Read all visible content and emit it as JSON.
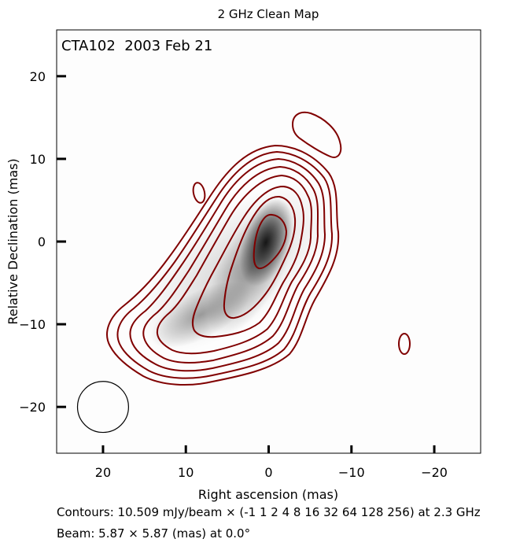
{
  "chart_data": {
    "type": "contour",
    "title": "2 GHz Clean Map",
    "annotation": "CTA102  2003 Feb 21",
    "xlabel": "Right ascension (mas)",
    "ylabel": "Relative Declination (mas)",
    "xlim": [
      25.6,
      -25.6
    ],
    "ylim": [
      -25.6,
      25.6
    ],
    "xticks": [
      20,
      10,
      0,
      -10,
      -20
    ],
    "xtick_labels": [
      "20",
      "10",
      "0",
      "−10",
      "−20"
    ],
    "yticks": [
      20,
      10,
      0,
      -10,
      -20
    ],
    "ytick_labels": [
      "20",
      "10",
      "0",
      "−10",
      "−20"
    ],
    "grid": false,
    "contour_color": "#800000",
    "contour_base_mJy": 10.509,
    "contour_multipliers": [
      -1,
      1,
      2,
      4,
      8,
      16,
      32,
      64,
      128,
      256
    ],
    "frequency_GHz": 2.3,
    "beam": {
      "major_mas": 5.87,
      "minor_mas": 5.87,
      "pa_deg": 0.0,
      "center": [
        20,
        -20
      ]
    },
    "peak_position_mas": [
      0,
      0.5
    ]
  },
  "caption": {
    "contours": "Contours: 10.509 mJy/beam × (-1 1 2 4 8 16 32 64 128 256) at 2.3 GHz",
    "beam": "Beam: 5.87  ×  5.87 (mas) at 0.0°"
  }
}
